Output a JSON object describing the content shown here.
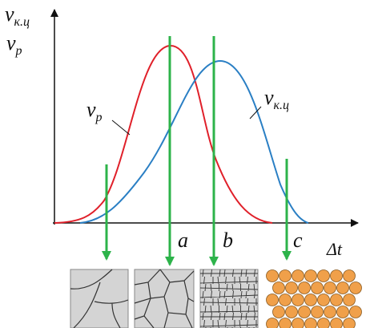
{
  "y_axis": {
    "labels": [
      {
        "symbol": "v",
        "subscript": "к.ц"
      },
      {
        "symbol": "v",
        "subscript": "p"
      }
    ]
  },
  "x_axis": {
    "label": "Δt"
  },
  "curves": [
    {
      "symbol": "v",
      "subscript": "p"
    },
    {
      "symbol": "v",
      "subscript": "к.ц"
    }
  ],
  "points": [
    "a",
    "b",
    "c"
  ]
}
